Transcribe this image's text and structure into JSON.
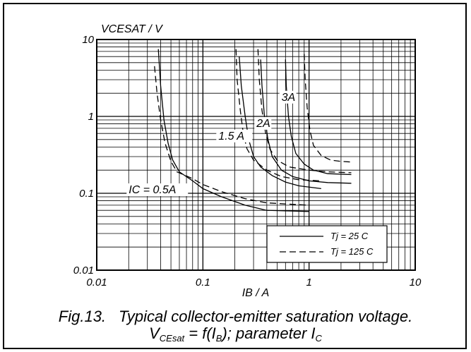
{
  "chart_data": {
    "type": "line",
    "xscale": "log",
    "yscale": "log",
    "xlim": [
      0.01,
      10
    ],
    "ylim": [
      0.01,
      10
    ],
    "grid": true,
    "ylabel": "VCESAT / V",
    "xlabel": "IB / A",
    "xticks": [
      "0.01",
      "0.1",
      "1",
      "10"
    ],
    "yticks": [
      "0.01",
      "0.1",
      "1",
      "10"
    ],
    "legend": {
      "placement": "bottom-right",
      "entries": [
        {
          "label": "Tj = 25 C",
          "style": "solid"
        },
        {
          "label": "Tj = 125 C",
          "style": "dashed"
        }
      ]
    },
    "annotations": [
      {
        "text": "IC = 0.5A",
        "x": 0.02,
        "y": 0.1
      },
      {
        "text": "1.5 A",
        "x": 0.14,
        "y": 0.5
      },
      {
        "text": "2A",
        "x": 0.32,
        "y": 0.73
      },
      {
        "text": "3A",
        "x": 0.55,
        "y": 1.6
      }
    ],
    "series": [
      {
        "ic": "0.5A",
        "tj": "25 C",
        "style": "solid",
        "points": [
          [
            0.038,
            7.5
          ],
          [
            0.04,
            2.5
          ],
          [
            0.043,
            0.9
          ],
          [
            0.047,
            0.45
          ],
          [
            0.052,
            0.27
          ],
          [
            0.06,
            0.19
          ],
          [
            0.08,
            0.145
          ],
          [
            0.1,
            0.115
          ],
          [
            0.15,
            0.09
          ],
          [
            0.25,
            0.07
          ],
          [
            0.4,
            0.06
          ],
          [
            1.0,
            0.058
          ]
        ]
      },
      {
        "ic": "0.5A",
        "tj": "125 C",
        "style": "dashed",
        "points": [
          [
            0.035,
            4.5
          ],
          [
            0.037,
            2.0
          ],
          [
            0.04,
            0.9
          ],
          [
            0.044,
            0.45
          ],
          [
            0.05,
            0.26
          ],
          [
            0.057,
            0.19
          ],
          [
            0.08,
            0.155
          ],
          [
            0.1,
            0.13
          ],
          [
            0.15,
            0.105
          ],
          [
            0.25,
            0.085
          ],
          [
            0.4,
            0.075
          ],
          [
            1.0,
            0.07
          ]
        ]
      },
      {
        "ic": "1.5A",
        "tj": "25 C",
        "style": "solid",
        "points": [
          [
            0.22,
            6.0
          ],
          [
            0.23,
            2.5
          ],
          [
            0.25,
            1.0
          ],
          [
            0.27,
            0.5
          ],
          [
            0.3,
            0.3
          ],
          [
            0.35,
            0.22
          ],
          [
            0.45,
            0.17
          ],
          [
            0.6,
            0.14
          ],
          [
            0.8,
            0.125
          ],
          [
            1.3,
            0.115
          ]
        ]
      },
      {
        "ic": "1.5A",
        "tj": "125 C",
        "style": "dashed",
        "points": [
          [
            0.205,
            7.5
          ],
          [
            0.21,
            3.0
          ],
          [
            0.225,
            1.2
          ],
          [
            0.24,
            0.6
          ],
          [
            0.26,
            0.38
          ],
          [
            0.3,
            0.27
          ],
          [
            0.4,
            0.2
          ],
          [
            0.55,
            0.165
          ],
          [
            0.8,
            0.15
          ],
          [
            1.3,
            0.145
          ]
        ]
      },
      {
        "ic": "2A",
        "tj": "25 C",
        "style": "solid",
        "points": [
          [
            0.35,
            5.5
          ],
          [
            0.36,
            2.5
          ],
          [
            0.38,
            1.0
          ],
          [
            0.41,
            0.5
          ],
          [
            0.45,
            0.3
          ],
          [
            0.55,
            0.2
          ],
          [
            0.7,
            0.165
          ],
          [
            1.0,
            0.145
          ],
          [
            1.5,
            0.138
          ],
          [
            2.5,
            0.135
          ]
        ]
      },
      {
        "ic": "2A",
        "tj": "125 C",
        "style": "dashed",
        "points": [
          [
            0.33,
            7.5
          ],
          [
            0.34,
            3.0
          ],
          [
            0.36,
            1.2
          ],
          [
            0.39,
            0.6
          ],
          [
            0.43,
            0.37
          ],
          [
            0.5,
            0.27
          ],
          [
            0.65,
            0.22
          ],
          [
            1.0,
            0.2
          ],
          [
            1.5,
            0.19
          ],
          [
            2.5,
            0.185
          ]
        ]
      },
      {
        "ic": "3A",
        "tj": "25 C",
        "style": "solid",
        "points": [
          [
            0.6,
            5.5
          ],
          [
            0.61,
            2.5
          ],
          [
            0.64,
            1.0
          ],
          [
            0.68,
            0.55
          ],
          [
            0.75,
            0.33
          ],
          [
            0.9,
            0.24
          ],
          [
            1.1,
            0.2
          ],
          [
            1.5,
            0.18
          ],
          [
            2.5,
            0.175
          ]
        ]
      },
      {
        "ic": "3A",
        "tj": "125 C",
        "style": "dashed",
        "points": [
          [
            0.9,
            6.5
          ],
          [
            0.92,
            3.0
          ],
          [
            0.96,
            1.3
          ],
          [
            1.02,
            0.65
          ],
          [
            1.1,
            0.42
          ],
          [
            1.3,
            0.31
          ],
          [
            1.6,
            0.27
          ],
          [
            2.0,
            0.26
          ],
          [
            2.5,
            0.255
          ]
        ]
      }
    ]
  },
  "caption": {
    "fig": "Fig.13.",
    "title": "Typical collector-emitter saturation voltage.",
    "formula_v": "V",
    "formula_v_sub": "CEsat",
    "formula_mid": " = f(I",
    "formula_b_sub": "B",
    "formula_end": "); parameter I",
    "formula_c_sub": "C"
  }
}
